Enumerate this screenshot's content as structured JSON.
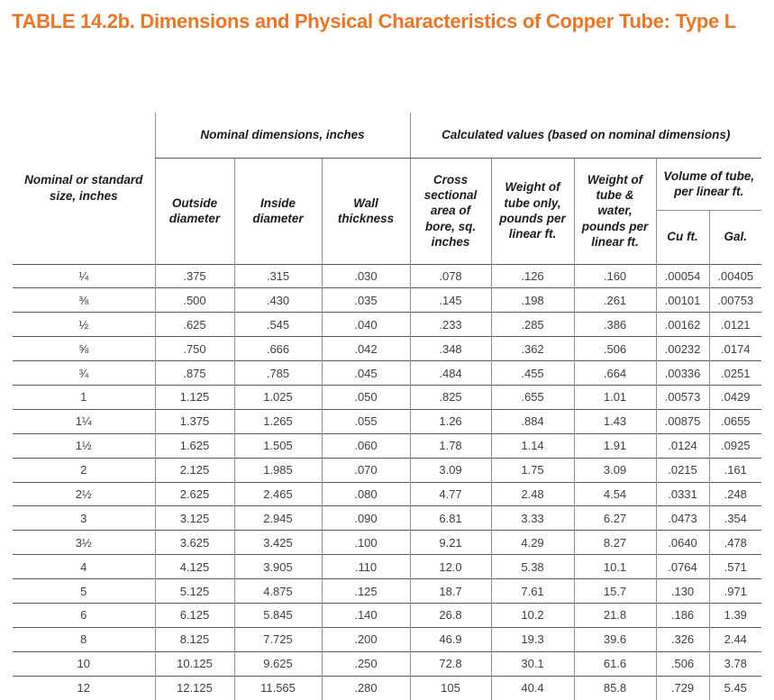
{
  "title": "TABLE 14.2b. Dimensions and Physical Characteristics of Copper Tube: Type L",
  "colors": {
    "title_orange": "#ed7526",
    "rule_dark": "#5c5953",
    "rule_gray": "#909090",
    "text_dark": "#1c1c1c",
    "text_body": "#404040"
  },
  "table": {
    "header": {
      "size": "Nominal or standard size, inches",
      "group_nominal": "Nominal dimensions, inches",
      "group_calculated": "Calculated values (based on nominal dimensions)",
      "outside_diameter": "Outside diameter",
      "inside_diameter": "Inside diameter",
      "wall_thickness": "Wall thickness",
      "cross_sectional_area": "Cross sectional area of bore, sq. inches",
      "weight_tube_only": "Weight of tube only, pounds per linear ft.",
      "weight_tube_water": "Weight of tube & water, pounds per linear ft.",
      "volume": "Volume of tube, per linear ft.",
      "cu_ft": "Cu ft.",
      "gal": "Gal."
    },
    "rows": [
      [
        "¼",
        ".375",
        ".315",
        ".030",
        ".078",
        ".126",
        ".160",
        ".00054",
        ".00405"
      ],
      [
        "⅜",
        ".500",
        ".430",
        ".035",
        ".145",
        ".198",
        ".261",
        ".00101",
        ".00753"
      ],
      [
        "½",
        ".625",
        ".545",
        ".040",
        ".233",
        ".285",
        ".386",
        ".00162",
        ".0121"
      ],
      [
        "⅝",
        ".750",
        ".666",
        ".042",
        ".348",
        ".362",
        ".506",
        ".00232",
        ".0174"
      ],
      [
        "¾",
        ".875",
        ".785",
        ".045",
        ".484",
        ".455",
        ".664",
        ".00336",
        ".0251"
      ],
      [
        "1",
        "1.125",
        "1.025",
        ".050",
        ".825",
        ".655",
        "1.01",
        ".00573",
        ".0429"
      ],
      [
        "1¼",
        "1.375",
        "1.265",
        ".055",
        "1.26",
        ".884",
        "1.43",
        ".00875",
        ".0655"
      ],
      [
        "1½",
        "1.625",
        "1.505",
        ".060",
        "1.78",
        "1.14",
        "1.91",
        ".0124",
        ".0925"
      ],
      [
        "2",
        "2.125",
        "1.985",
        ".070",
        "3.09",
        "1.75",
        "3.09",
        ".0215",
        ".161"
      ],
      [
        "2½",
        "2.625",
        "2.465",
        ".080",
        "4.77",
        "2.48",
        "4.54",
        ".0331",
        ".248"
      ],
      [
        "3",
        "3.125",
        "2.945",
        ".090",
        "6.81",
        "3.33",
        "6.27",
        ".0473",
        ".354"
      ],
      [
        "3½",
        "3.625",
        "3.425",
        ".100",
        "9.21",
        "4.29",
        "8.27",
        ".0640",
        ".478"
      ],
      [
        "4",
        "4.125",
        "3.905",
        ".110",
        "12.0",
        "5.38",
        "10.1",
        ".0764",
        ".571"
      ],
      [
        "5",
        "5.125",
        "4.875",
        ".125",
        "18.7",
        "7.61",
        "15.7",
        ".130",
        ".971"
      ],
      [
        "6",
        "6.125",
        "5.845",
        ".140",
        "26.8",
        "10.2",
        "21.8",
        ".186",
        "1.39"
      ],
      [
        "8",
        "8.125",
        "7.725",
        ".200",
        "46.9",
        "19.3",
        "39.6",
        ".326",
        "2.44"
      ],
      [
        "10",
        "10.125",
        "9.625",
        ".250",
        "72.8",
        "30.1",
        "61.6",
        ".506",
        "3.78"
      ],
      [
        "12",
        "12.125",
        "11.565",
        ".280",
        "105",
        "40.4",
        "85.8",
        ".729",
        "5.45"
      ]
    ]
  }
}
